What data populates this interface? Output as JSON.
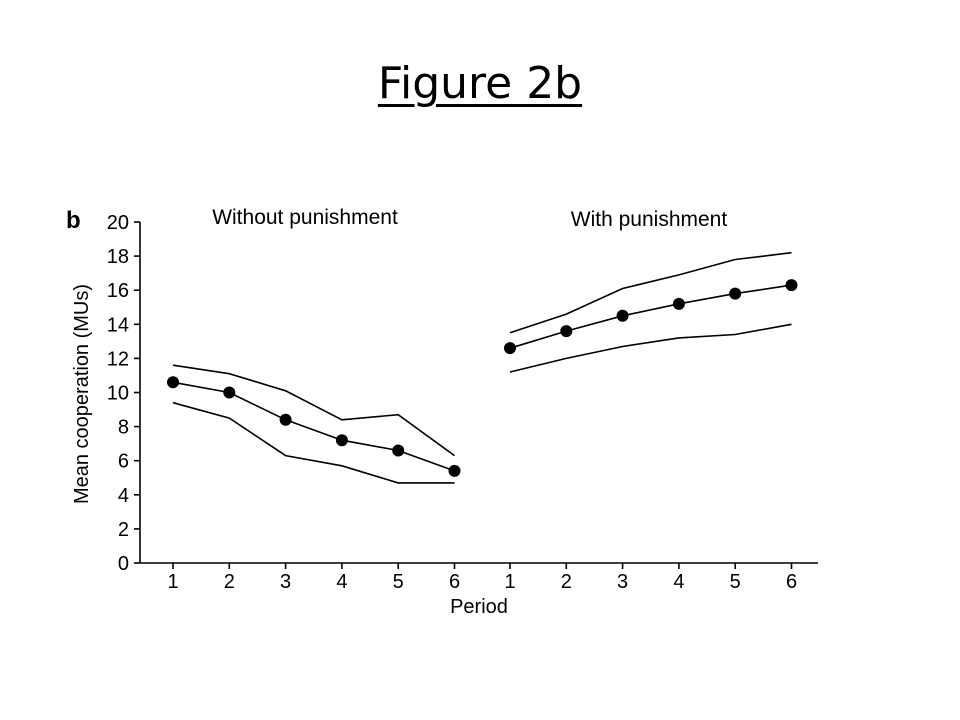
{
  "slide": {
    "title": "Figure 2b"
  },
  "chart_data": {
    "type": "line",
    "panel_label": "b",
    "ylabel": "Mean cooperation (MUs)",
    "xlabel": "Period",
    "ylim": [
      0,
      20
    ],
    "yticks": [
      0,
      2,
      4,
      6,
      8,
      10,
      12,
      14,
      16,
      18,
      20
    ],
    "grid": false,
    "legend": "none",
    "groups": [
      {
        "label": "Without punishment",
        "periods": [
          "1",
          "2",
          "3",
          "4",
          "5",
          "6"
        ],
        "mean": [
          10.6,
          10.0,
          8.4,
          7.2,
          6.6,
          5.4
        ],
        "upper": [
          11.6,
          11.1,
          10.1,
          8.4,
          8.7,
          6.3
        ],
        "lower": [
          9.4,
          8.5,
          6.3,
          5.7,
          4.7,
          4.7
        ]
      },
      {
        "label": "With punishment",
        "periods": [
          "1",
          "2",
          "3",
          "4",
          "5",
          "6"
        ],
        "mean": [
          12.6,
          13.6,
          14.5,
          15.2,
          15.8,
          16.3
        ],
        "upper": [
          13.5,
          14.6,
          16.1,
          16.9,
          17.8,
          18.2
        ],
        "lower": [
          11.2,
          12.0,
          12.7,
          13.2,
          13.4,
          14.0
        ]
      }
    ]
  }
}
